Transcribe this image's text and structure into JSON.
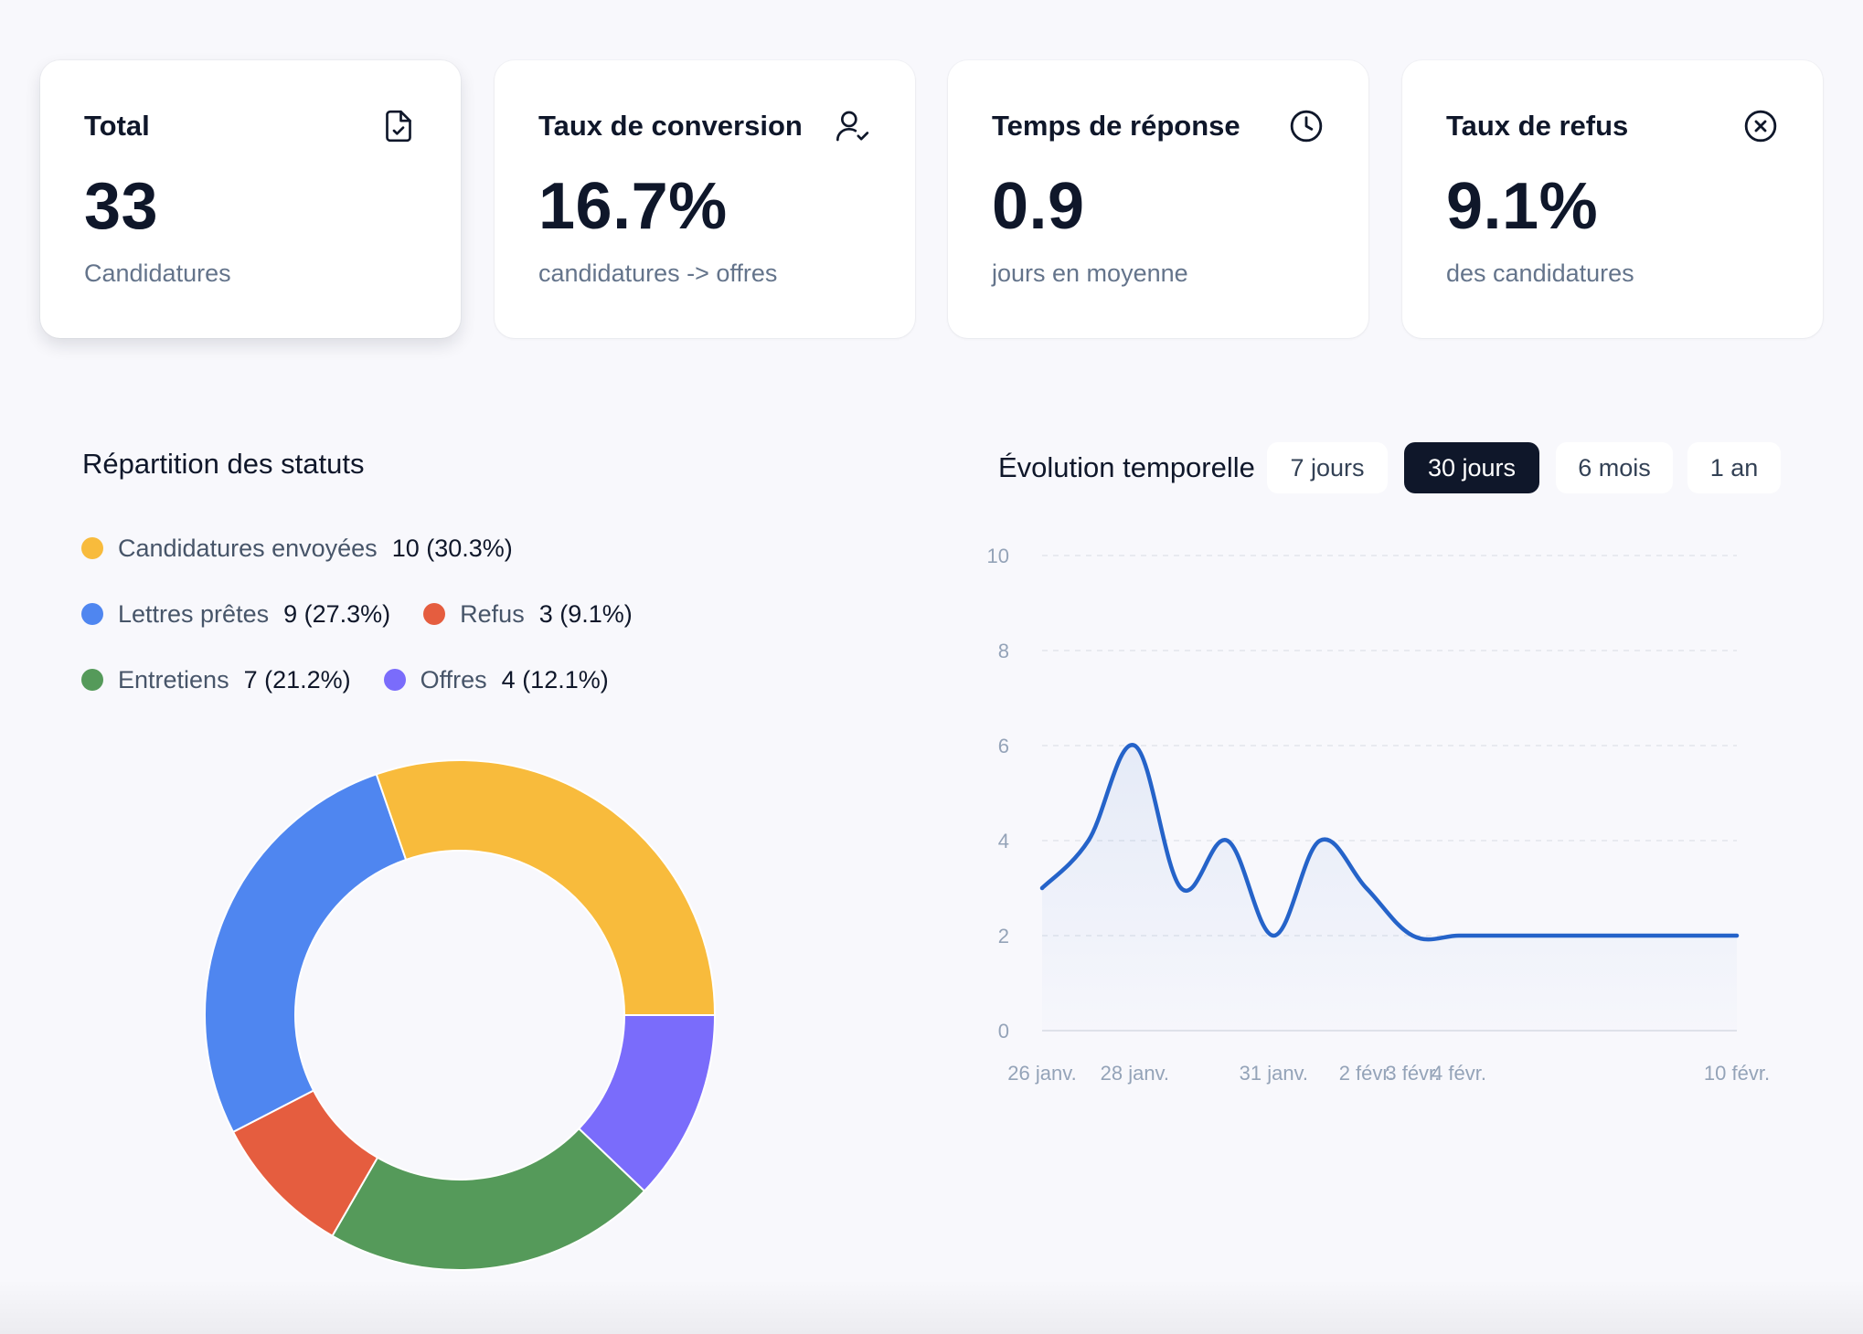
{
  "stats": [
    {
      "title": "Total",
      "value": "33",
      "subtitle": "Candidatures",
      "icon": "file-check-icon"
    },
    {
      "title": "Taux de conversion",
      "value": "16.7%",
      "subtitle": "candidatures -> offres",
      "icon": "user-check-icon"
    },
    {
      "title": "Temps de réponse",
      "value": "0.9",
      "subtitle": "jours en moyenne",
      "icon": "clock-icon"
    },
    {
      "title": "Taux de refus",
      "value": "9.1%",
      "subtitle": "des candidatures",
      "icon": "x-circle-icon"
    }
  ],
  "distribution": {
    "title": "Répartition des statuts",
    "legend": [
      {
        "label": "Candidatures envoyées",
        "value": "10 (30.3%)",
        "color": "#f8bb3c"
      },
      {
        "label": "Lettres prêtes",
        "value": "9 (27.3%)",
        "color": "#4f86f0"
      },
      {
        "label": "Refus",
        "value": "3 (9.1%)",
        "color": "#e55d3f"
      },
      {
        "label": "Entretiens",
        "value": "7 (21.2%)",
        "color": "#559a5a"
      },
      {
        "label": "Offres",
        "value": "4 (12.1%)",
        "color": "#7a6cfb"
      }
    ]
  },
  "evolution": {
    "title": "Évolution temporelle",
    "ranges": [
      "7 jours",
      "30 jours",
      "6 mois",
      "1 an"
    ],
    "active_range": "30 jours"
  },
  "chart_data": [
    {
      "type": "pie",
      "donut": true,
      "order": "clockwise from 3 o'clock",
      "slices": [
        {
          "label": "Offres",
          "value": 4,
          "color": "#7a6cfb"
        },
        {
          "label": "Entretiens",
          "value": 7,
          "color": "#559a5a"
        },
        {
          "label": "Refus",
          "value": 3,
          "color": "#e55d3f"
        },
        {
          "label": "Lettres prêtes",
          "value": 9,
          "color": "#4f86f0"
        },
        {
          "label": "Candidatures envoyées",
          "value": 10,
          "color": "#f8bb3c"
        }
      ]
    },
    {
      "type": "area",
      "x_axis": "time",
      "x": [
        "2025-01-26",
        "2025-01-27",
        "2025-01-28",
        "2025-01-29",
        "2025-01-30",
        "2025-01-31",
        "2025-02-01",
        "2025-02-02",
        "2025-02-03",
        "2025-02-04",
        "2025-02-05",
        "2025-02-10"
      ],
      "tick_labels": [
        "26 janv.",
        "28 janv.",
        "31 janv.",
        "2 févr.",
        "3 févr.",
        "4 févr.",
        "10 févr."
      ],
      "tick_dates": [
        "2025-01-26",
        "2025-01-28",
        "2025-01-31",
        "2025-02-02",
        "2025-02-03",
        "2025-02-04",
        "2025-02-10"
      ],
      "values": [
        3,
        4,
        6,
        3,
        4,
        2,
        4,
        3,
        2,
        2,
        2,
        2
      ],
      "ylim": [
        0,
        10
      ],
      "yticks": [
        0,
        2,
        4,
        6,
        8,
        10
      ],
      "grid": true,
      "line_color": "#2563c9"
    }
  ]
}
